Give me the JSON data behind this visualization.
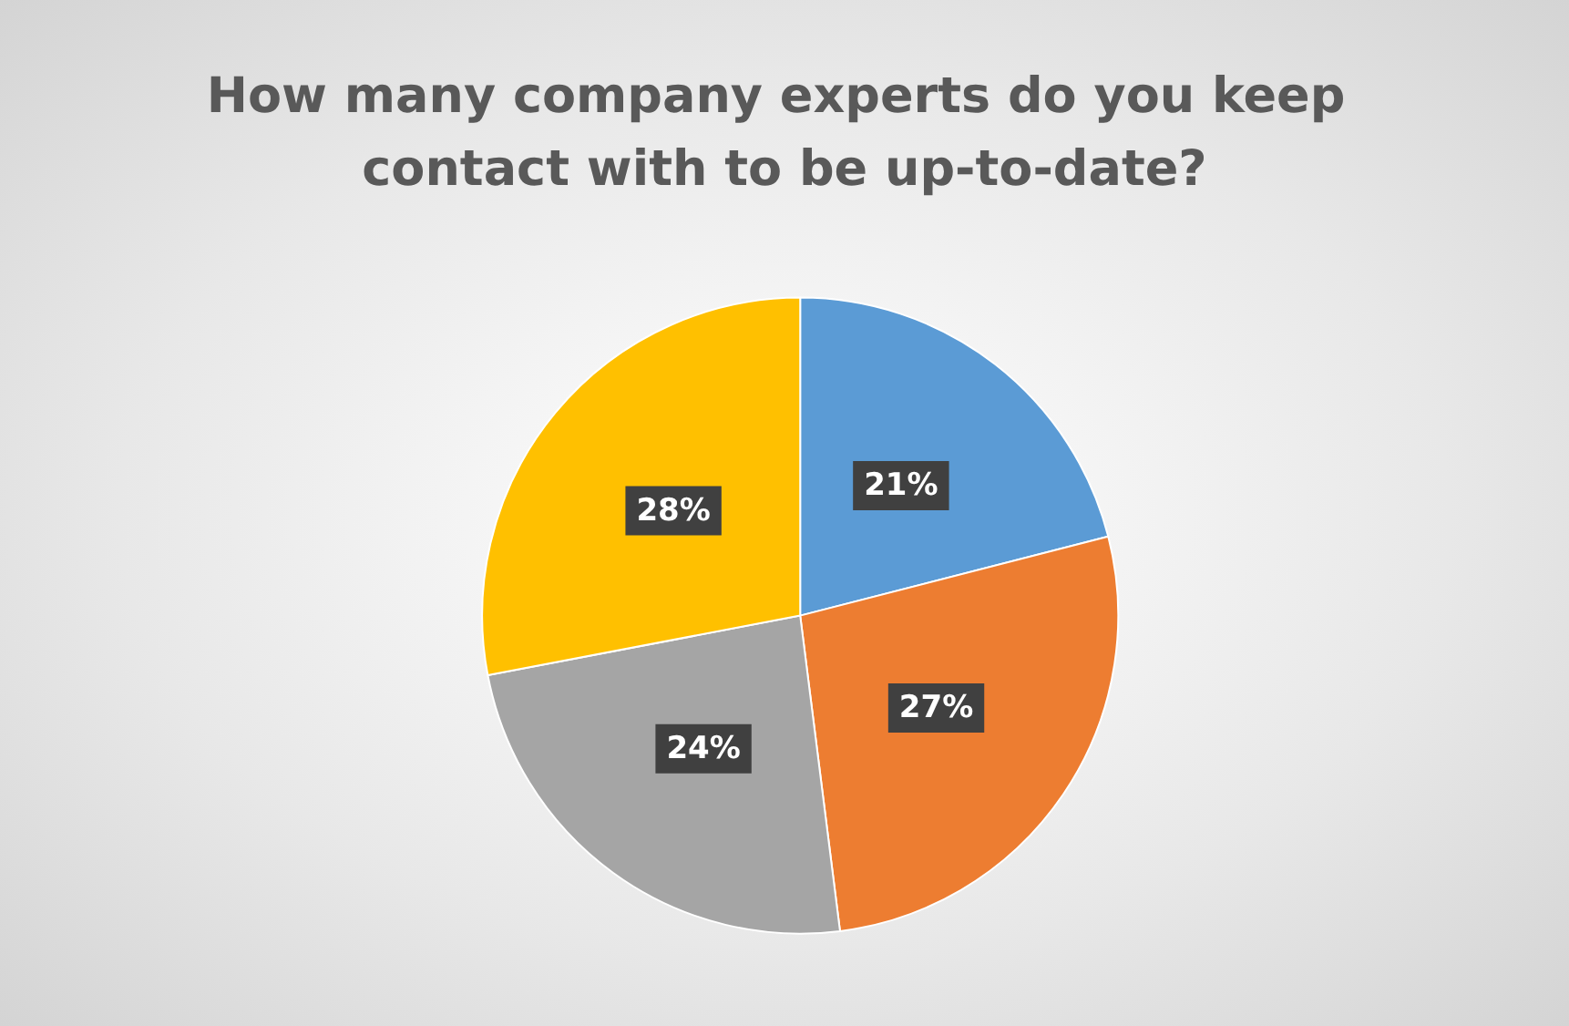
{
  "chart_data": {
    "type": "pie",
    "title": "How many company experts do you keep contact with to be up-to-date?",
    "categories": [
      null,
      null,
      null,
      null
    ],
    "values": [
      21,
      27,
      24,
      28
    ],
    "colors": [
      "#5b9bd5",
      "#ed7d31",
      "#a5a5a5",
      "#ffc000"
    ],
    "value_labels": [
      "21%",
      "27%",
      "24%",
      "28%"
    ]
  }
}
